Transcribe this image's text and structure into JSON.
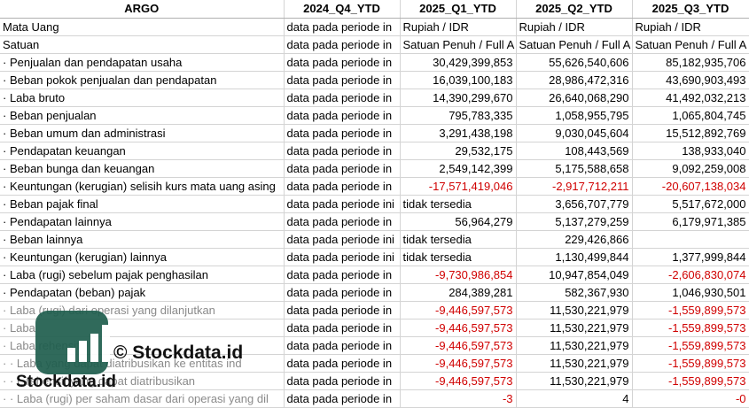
{
  "columns": [
    "ARGO",
    "2024_Q4_YTD",
    "2025_Q1_YTD",
    "2025_Q2_YTD",
    "2025_Q3_YTD"
  ],
  "rows": [
    {
      "label": "Mata Uang",
      "c1": "data pada periode in",
      "c2": "Rupiah / IDR",
      "c3": "Rupiah / IDR",
      "c4": "Rupiah / IDR"
    },
    {
      "label": "Satuan",
      "c1": "data pada periode in",
      "c2": "Satuan Penuh / Full A",
      "c3": "Satuan Penuh / Full A",
      "c4": "Satuan Penuh / Full A"
    },
    {
      "label": "· Penjualan dan pendapatan usaha",
      "c1": "data pada periode in",
      "c2": "30,429,399,853",
      "c3": "55,626,540,606",
      "c4": "85,182,935,706"
    },
    {
      "label": "· Beban pokok penjualan dan pendapatan",
      "c1": "data pada periode in",
      "c2": "16,039,100,183",
      "c3": "28,986,472,316",
      "c4": "43,690,903,493"
    },
    {
      "label": "· Laba bruto",
      "c1": "data pada periode in",
      "c2": "14,390,299,670",
      "c3": "26,640,068,290",
      "c4": "41,492,032,213"
    },
    {
      "label": "· Beban penjualan",
      "c1": "data pada periode in",
      "c2": "795,783,335",
      "c3": "1,058,955,795",
      "c4": "1,065,804,745"
    },
    {
      "label": "· Beban umum dan administrasi",
      "c1": "data pada periode in",
      "c2": "3,291,438,198",
      "c3": "9,030,045,604",
      "c4": "15,512,892,769"
    },
    {
      "label": "· Pendapatan keuangan",
      "c1": "data pada periode in",
      "c2": "29,532,175",
      "c3": "108,443,569",
      "c4": "138,933,040"
    },
    {
      "label": "· Beban bunga dan keuangan",
      "c1": "data pada periode in",
      "c2": "2,549,142,399",
      "c3": "5,175,588,658",
      "c4": "9,092,259,008"
    },
    {
      "label": "· Keuntungan (kerugian) selisih kurs mata uang asing",
      "c1": "data pada periode in",
      "c2": "-17,571,419,046",
      "c3": "-2,917,712,211",
      "c4": "-20,607,138,034"
    },
    {
      "label": "· Beban pajak final",
      "c1": "data pada periode ini",
      "c2": "tidak tersedia",
      "c3": "3,656,707,779",
      "c4": "5,517,672,000"
    },
    {
      "label": "· Pendapatan lainnya",
      "c1": "data pada periode in",
      "c2": "56,964,279",
      "c3": "5,137,279,259",
      "c4": "6,179,971,385"
    },
    {
      "label": "· Beban lainnya",
      "c1": "data pada periode ini",
      "c2": "tidak tersedia",
      "c3": "229,426,866",
      "c4": ""
    },
    {
      "label": "· Keuntungan (kerugian) lainnya",
      "c1": "data pada periode ini",
      "c2": "tidak tersedia",
      "c3": "1,130,499,844",
      "c4": "1,377,999,844"
    },
    {
      "label": "· Laba (rugi) sebelum pajak penghasilan",
      "c1": "data pada periode in",
      "c2": "-9,730,986,854",
      "c3": "10,947,854,049",
      "c4": "-2,606,830,074"
    },
    {
      "label": "· Pendapatan (beban) pajak",
      "c1": "data pada periode in",
      "c2": "284,389,281",
      "c3": "582,367,930",
      "c4": "1,046,930,501"
    },
    {
      "label": "· Laba (rugi) dari operasi yang dilanjutkan",
      "c1": "data pada periode in",
      "c2": "-9,446,597,573",
      "c3": "11,530,221,979",
      "c4": "-1,559,899,573"
    },
    {
      "label": "· Laba",
      "c1": "data pada periode in",
      "c2": "-9,446,597,573",
      "c3": "11,530,221,979",
      "c4": "-1,559,899,573"
    },
    {
      "label": "· Laba rehensif",
      "c1": "data pada periode in",
      "c2": "-9,446,597,573",
      "c3": "11,530,221,979",
      "c4": "-1,559,899,573"
    },
    {
      "label": "· · Laba yang dapat diatribusikan ke entitas ind",
      "c1": "data pada periode in",
      "c2": "-9,446,597,573",
      "c3": "11,530,221,979",
      "c4": "-1,559,899,573"
    },
    {
      "label": "· · L rehensif yang dapat diatribusikan",
      "c1": "data pada periode in",
      "c2": "-9,446,597,573",
      "c3": "11,530,221,979",
      "c4": "-1,559,899,573"
    },
    {
      "label": "· · Laba (rugi) per saham dasar dari operasi yang dil",
      "c1": "data pada periode in",
      "c2": "-3",
      "c3": "4",
      "c4": "-0"
    }
  ],
  "watermark": {
    "copyright": "© Stockdata.id",
    "brand": "Stockdata.id"
  },
  "colors": {
    "negative": "#d00000",
    "logo_bg": "#1f5e4e",
    "grid": "#d4d4d4"
  }
}
